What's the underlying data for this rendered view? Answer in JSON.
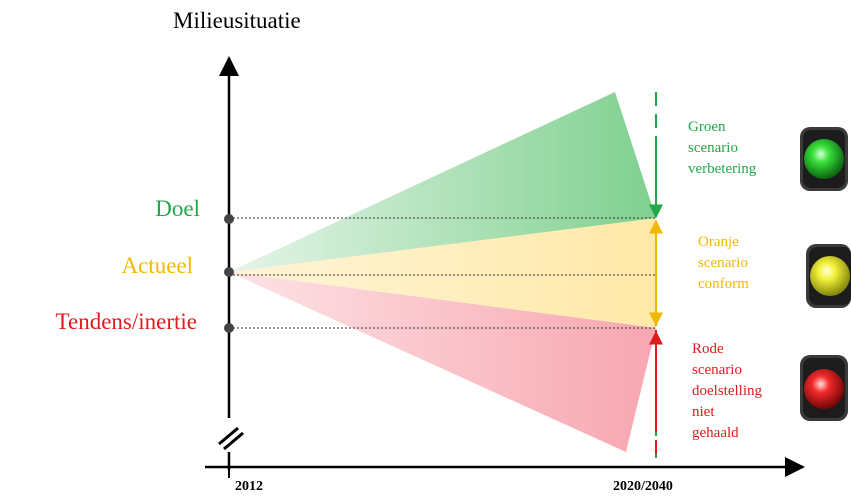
{
  "y_axis_title": "Milieusituatie",
  "levels": {
    "goal": {
      "label": "Doel",
      "color": "#22a84a"
    },
    "current": {
      "label": "Actueel",
      "color": "#f2b800"
    },
    "trend": {
      "label": "Tendens/inertie",
      "color": "#e01b1b"
    }
  },
  "x_axis": {
    "start_label": "2012",
    "end_label": "2020/2040"
  },
  "scenarios": {
    "green": {
      "lines": [
        "Groen",
        "scenario",
        "verbetering"
      ],
      "color": "#22a84a",
      "light_icon": "green-traffic-light-icon"
    },
    "orange": {
      "lines": [
        "Oranje",
        "scenario",
        "conform"
      ],
      "color": "#f2b800",
      "light_icon": "yellow-traffic-light-icon"
    },
    "red": {
      "lines": [
        "Rode",
        "scenario",
        "doelstelling",
        "niet",
        "gehaald"
      ],
      "color": "#e01b1b",
      "light_icon": "red-traffic-light-icon"
    }
  }
}
